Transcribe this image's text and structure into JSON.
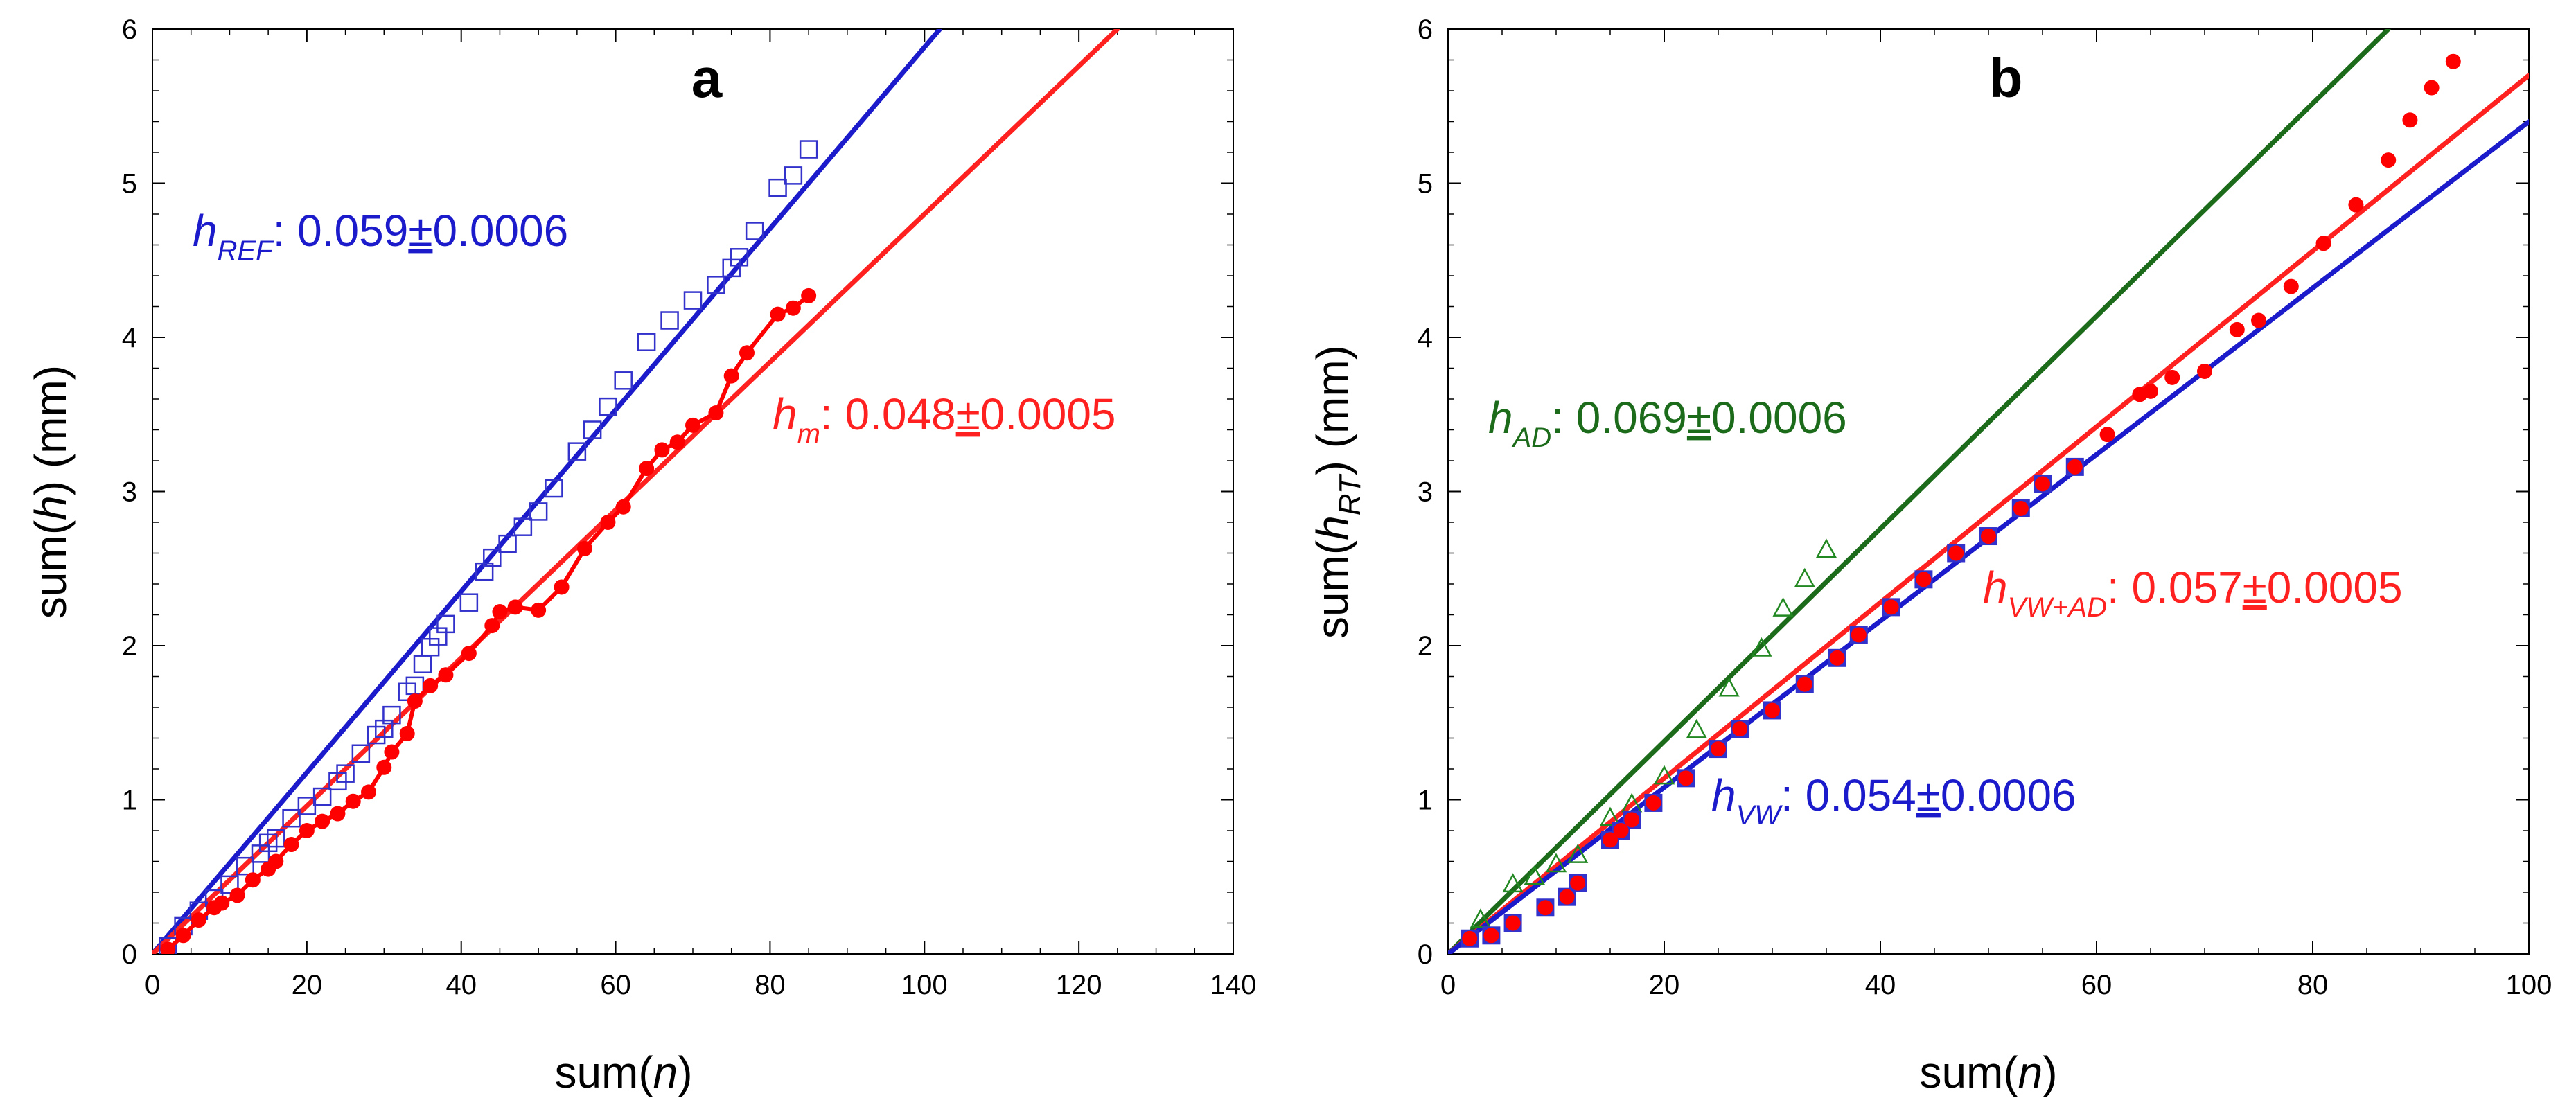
{
  "figure": {
    "panels": [
      "a",
      "b"
    ]
  },
  "chart_data": [
    {
      "type": "scatter",
      "panel_label": "a",
      "title": "",
      "xlabel": "sum(n)",
      "xlabel_parts": {
        "prefix": "sum(",
        "italic": "n",
        "suffix": ")"
      },
      "ylabel": "sum(h) (mm)",
      "ylabel_parts": {
        "prefix": "sum(",
        "italic": "h",
        "suffix": ") (mm)"
      },
      "xlim": [
        0,
        140
      ],
      "ylim": [
        0,
        6
      ],
      "xticks": [
        "0",
        "20",
        "40",
        "60",
        "80",
        "100",
        "120",
        "140"
      ],
      "yticks": [
        "0",
        "1",
        "2",
        "3",
        "4",
        "5",
        "6"
      ],
      "series": [
        {
          "name": "h_REF data",
          "marker": "open-square",
          "color": "#3333cc",
          "x": [
            2,
            4,
            6,
            8,
            10,
            12,
            14,
            15,
            16,
            18,
            20,
            22,
            24,
            25,
            27,
            29,
            30,
            31,
            33,
            34,
            35,
            36,
            37,
            38,
            41,
            43,
            44,
            46,
            48,
            50,
            52,
            55,
            57,
            59,
            61,
            64,
            67,
            70,
            73,
            75,
            76,
            78,
            81,
            83,
            85
          ],
          "y": [
            0.05,
            0.18,
            0.28,
            0.36,
            0.45,
            0.57,
            0.65,
            0.72,
            0.75,
            0.88,
            0.96,
            1.02,
            1.12,
            1.17,
            1.3,
            1.42,
            1.46,
            1.55,
            1.7,
            1.74,
            1.88,
            1.99,
            2.06,
            2.14,
            2.28,
            2.48,
            2.57,
            2.66,
            2.77,
            2.87,
            3.02,
            3.26,
            3.4,
            3.55,
            3.72,
            3.97,
            4.11,
            4.24,
            4.34,
            4.45,
            4.52,
            4.69,
            4.97,
            5.05,
            5.22
          ]
        },
        {
          "name": "h_m data",
          "marker": "filled-circle",
          "color": "#ff0000",
          "connected": true,
          "x": [
            2,
            4,
            6,
            8,
            9,
            11,
            13,
            15,
            16,
            18,
            20,
            22,
            24,
            26,
            28,
            30,
            31,
            33,
            34,
            36,
            38,
            41,
            44,
            45,
            47,
            50,
            53,
            56,
            59,
            61,
            64,
            66,
            68,
            70,
            73,
            75,
            77,
            81,
            83,
            85
          ],
          "y": [
            0.03,
            0.12,
            0.22,
            0.3,
            0.33,
            0.38,
            0.48,
            0.55,
            0.6,
            0.71,
            0.8,
            0.86,
            0.91,
            0.99,
            1.05,
            1.21,
            1.31,
            1.43,
            1.64,
            1.74,
            1.81,
            1.95,
            2.13,
            2.22,
            2.25,
            2.23,
            2.38,
            2.63,
            2.8,
            2.9,
            3.15,
            3.27,
            3.32,
            3.43,
            3.51,
            3.75,
            3.9,
            4.15,
            4.19,
            4.27
          ]
        },
        {
          "name": "h_REF fit",
          "type": "line",
          "color": "#1b1bcc",
          "x": [
            0,
            102
          ],
          "y": [
            0,
            6
          ]
        },
        {
          "name": "h_m fit",
          "type": "line",
          "color": "#ff2020",
          "x": [
            0,
            125
          ],
          "y": [
            0,
            6
          ]
        }
      ],
      "annotations": [
        {
          "name": "h_REF",
          "color": "#1b1bcc",
          "main": "h",
          "sub": "REF",
          "value": ": 0.059",
          "pm": "±",
          "err": "0.0006"
        },
        {
          "name": "h_m",
          "color": "#ff2020",
          "main": "h",
          "sub": "m",
          "value": ": 0.048",
          "pm": "±",
          "err": "0.0005"
        }
      ]
    },
    {
      "type": "scatter",
      "panel_label": "b",
      "title": "",
      "xlabel": "sum(n)",
      "xlabel_parts": {
        "prefix": "sum(",
        "italic": "n",
        "suffix": ")"
      },
      "ylabel": "sum(h_RT) (mm)",
      "ylabel_parts": {
        "prefix": "sum(",
        "italic": "h",
        "sub": "RT",
        "suffix": ") (mm)"
      },
      "xlim": [
        0,
        100
      ],
      "ylim": [
        0,
        6
      ],
      "xticks": [
        "0",
        "20",
        "40",
        "60",
        "80",
        "100"
      ],
      "yticks": [
        "0",
        "1",
        "2",
        "3",
        "4",
        "5",
        "6"
      ],
      "series": [
        {
          "name": "h_AD data",
          "marker": "open-triangle",
          "color": "#228822",
          "x": [
            3,
            6,
            8,
            10,
            12,
            15,
            17,
            20,
            23,
            26,
            29,
            31,
            33,
            35
          ],
          "y": [
            0.22,
            0.45,
            0.5,
            0.58,
            0.64,
            0.88,
            0.97,
            1.15,
            1.45,
            1.72,
            1.98,
            2.24,
            2.43,
            2.62
          ]
        },
        {
          "name": "h_VW data",
          "marker": "filled-square",
          "color": "#3333cc",
          "x": [
            2,
            4,
            6,
            9,
            11,
            12,
            15,
            16,
            17,
            19,
            22,
            25,
            27,
            30,
            33,
            36,
            38,
            41,
            44,
            47,
            50,
            53,
            55,
            58
          ],
          "y": [
            0.1,
            0.12,
            0.2,
            0.3,
            0.37,
            0.46,
            0.74,
            0.8,
            0.87,
            0.98,
            1.14,
            1.33,
            1.46,
            1.58,
            1.75,
            1.92,
            2.07,
            2.25,
            2.43,
            2.6,
            2.71,
            2.89,
            3.05,
            3.16
          ]
        },
        {
          "name": "h_VW+AD data",
          "marker": "filled-circle",
          "color": "#ff0000",
          "x": [
            2,
            4,
            6,
            9,
            11,
            12,
            15,
            16,
            17,
            19,
            22,
            25,
            27,
            30,
            33,
            36,
            38,
            41,
            44,
            47,
            50,
            53,
            55,
            58,
            61,
            64,
            65,
            67,
            70,
            73,
            75,
            78,
            81,
            84,
            87,
            89,
            91,
            93
          ],
          "y": [
            0.1,
            0.12,
            0.2,
            0.3,
            0.37,
            0.46,
            0.74,
            0.8,
            0.87,
            0.98,
            1.14,
            1.33,
            1.46,
            1.58,
            1.75,
            1.92,
            2.07,
            2.25,
            2.43,
            2.6,
            2.71,
            2.89,
            3.05,
            3.16,
            3.37,
            3.63,
            3.65,
            3.74,
            3.78,
            4.05,
            4.11,
            4.33,
            4.61,
            4.86,
            5.15,
            5.41,
            5.62,
            5.79
          ]
        },
        {
          "name": "h_AD fit",
          "type": "line",
          "color": "#1b6b1b",
          "x": [
            0,
            87
          ],
          "y": [
            0,
            6
          ]
        },
        {
          "name": "h_VW+AD fit",
          "type": "line",
          "color": "#ff2020",
          "x": [
            0,
            100
          ],
          "y": [
            0,
            5.7
          ]
        },
        {
          "name": "h_VW fit",
          "type": "line",
          "color": "#1b1bcc",
          "x": [
            0,
            100
          ],
          "y": [
            0,
            5.4
          ]
        }
      ],
      "annotations": [
        {
          "name": "h_AD",
          "color": "#1b6b1b",
          "main": "h",
          "sub": "AD",
          "value": ": 0.069",
          "pm": "±",
          "err": "0.0006"
        },
        {
          "name": "h_VW+AD",
          "color": "#ff2020",
          "main": "h",
          "sub": "VW+AD",
          "value": ": 0.057",
          "pm": "±",
          "err": "0.0005"
        },
        {
          "name": "h_VW",
          "color": "#1b1bcc",
          "main": "h",
          "sub": "VW",
          "value": ": 0.054",
          "pm": "±",
          "err": "0.0006"
        }
      ]
    }
  ]
}
